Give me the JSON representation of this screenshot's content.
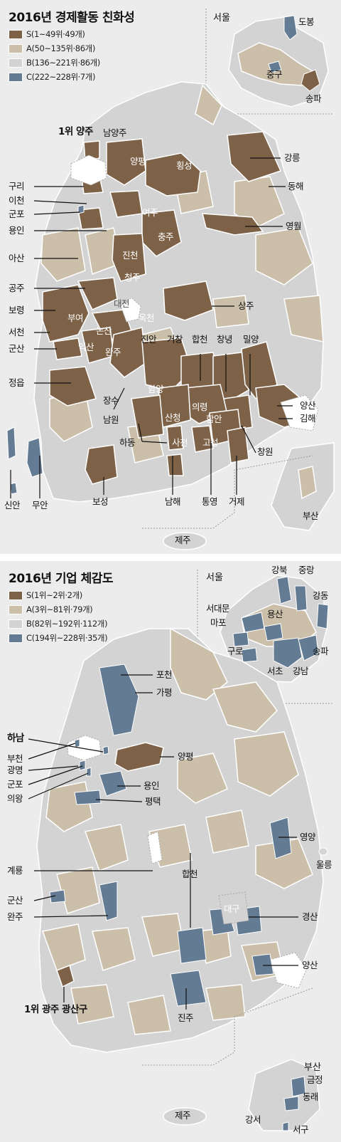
{
  "colors": {
    "S": "#7d6248",
    "A": "#cbbfa9",
    "B": "#d3d3d3",
    "C": "#637b93",
    "bg": "#ececec",
    "line": "#ffffff"
  },
  "panel1": {
    "title": "2016년 경제활동 친화성",
    "legend": [
      {
        "key": "S",
        "text": "S(1~49위·49개)"
      },
      {
        "key": "A",
        "text": "A(50~135위·86개)"
      },
      {
        "key": "B",
        "text": "B(136~221위·86개)"
      },
      {
        "key": "C",
        "text": "C(222~228위·7개)"
      }
    ],
    "inset_seoul": {
      "title": "서울",
      "labels": [
        "도봉",
        "중구",
        "송파"
      ]
    },
    "inset_jeju": "제주",
    "inset_busan": "부산",
    "highlight": "1위 양주",
    "labels": [
      "남양주",
      "양평",
      "횡성",
      "강릉",
      "동해",
      "구리",
      "이천",
      "군포",
      "여주",
      "용인",
      "영월",
      "충주",
      "아산",
      "진천",
      "청주",
      "공주",
      "상주",
      "대전",
      "옥천",
      "보령",
      "부여",
      "논산",
      "서천",
      "익산",
      "군산",
      "완주",
      "진안",
      "거창",
      "합천",
      "창녕",
      "밀양",
      "정읍",
      "함양",
      "의령",
      "함안",
      "양산",
      "김해",
      "장수",
      "산청",
      "남원",
      "하동",
      "사천",
      "고성",
      "창원",
      "신안",
      "무안",
      "보성",
      "남해",
      "통영",
      "거제"
    ]
  },
  "panel2": {
    "title": "2016년 기업 체감도",
    "legend": [
      {
        "key": "S",
        "text": "S(1위~2위·2개)"
      },
      {
        "key": "A",
        "text": "A(3위~81위·79개)"
      },
      {
        "key": "B",
        "text": "B(82위~192위·112개)"
      },
      {
        "key": "C",
        "text": "C(194위~228위·35개)"
      }
    ],
    "inset_seoul": {
      "title": "서울",
      "labels": [
        "강북",
        "중랑",
        "강동",
        "서대문",
        "용산",
        "마포",
        "구로",
        "송파",
        "서초",
        "강남"
      ]
    },
    "inset_busan": {
      "title": "부산",
      "labels": [
        "금정",
        "동래",
        "강서",
        "서구"
      ]
    },
    "inset_jeju": "제주",
    "labels": [
      "포천",
      "하남",
      "가평",
      "부천",
      "광명",
      "양평",
      "군포",
      "의왕",
      "용인",
      "평택",
      "영양",
      "울릉",
      "계룡",
      "합천",
      "대구",
      "군산",
      "경산",
      "완주",
      "양산",
      "진주"
    ],
    "highlight": "1위 광주 광산구"
  }
}
